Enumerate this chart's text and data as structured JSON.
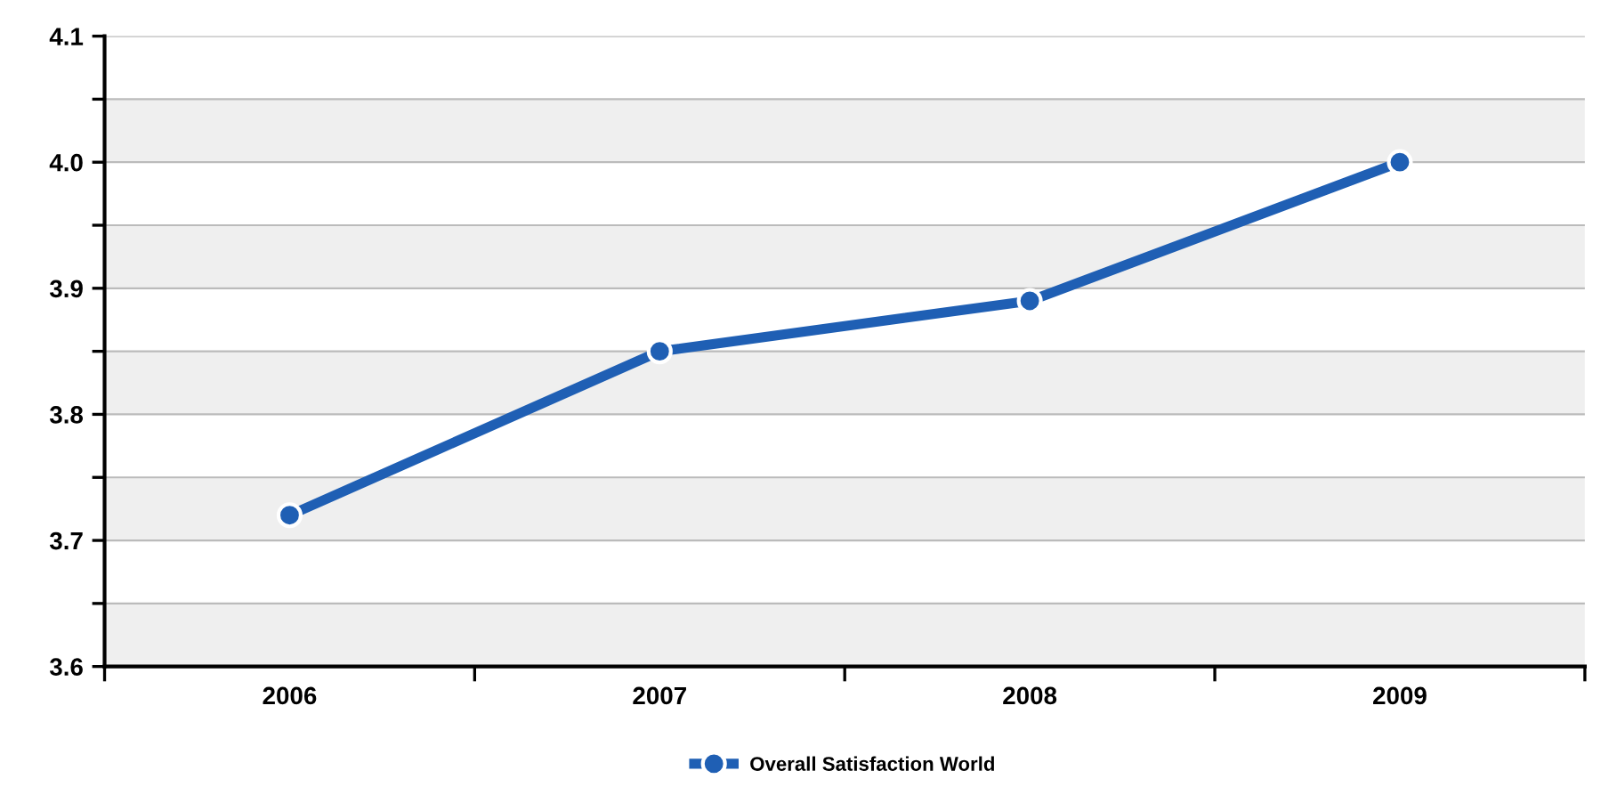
{
  "chart_data": {
    "type": "line",
    "categories": [
      "2006",
      "2007",
      "2008",
      "2009"
    ],
    "series": [
      {
        "name": "Overall Satisfaction World",
        "color": "#1f5fb4",
        "values": [
          3.72,
          3.85,
          3.89,
          4.0
        ]
      }
    ],
    "ylim": [
      3.6,
      4.1
    ],
    "yticks": [
      3.6,
      {
        "value": 3.65,
        "label": null
      },
      3.7,
      {
        "value": 3.75,
        "label": null
      },
      3.8,
      {
        "value": 3.85,
        "label": null
      },
      3.9,
      {
        "value": 3.95,
        "label": null
      },
      {
        "value": 4.0,
        "label": "4.0"
      },
      {
        "value": 4.05,
        "label": null
      },
      4.1
    ],
    "bands": [
      {
        "axis": "y",
        "from": 3.6,
        "to": 3.65,
        "color": "#efefef"
      },
      {
        "axis": "y",
        "from": 3.7,
        "to": 3.75,
        "color": "#efefef"
      },
      {
        "axis": "y",
        "from": 3.8,
        "to": 3.85,
        "color": "#efefef"
      },
      {
        "axis": "y",
        "from": 3.9,
        "to": 3.95,
        "color": "#efefef"
      },
      {
        "axis": "y",
        "from": 4.0,
        "to": 4.05,
        "color": "#efefef"
      }
    ],
    "grid": "y",
    "legend": "bottom",
    "marker": "circle",
    "line_style": "solid"
  }
}
